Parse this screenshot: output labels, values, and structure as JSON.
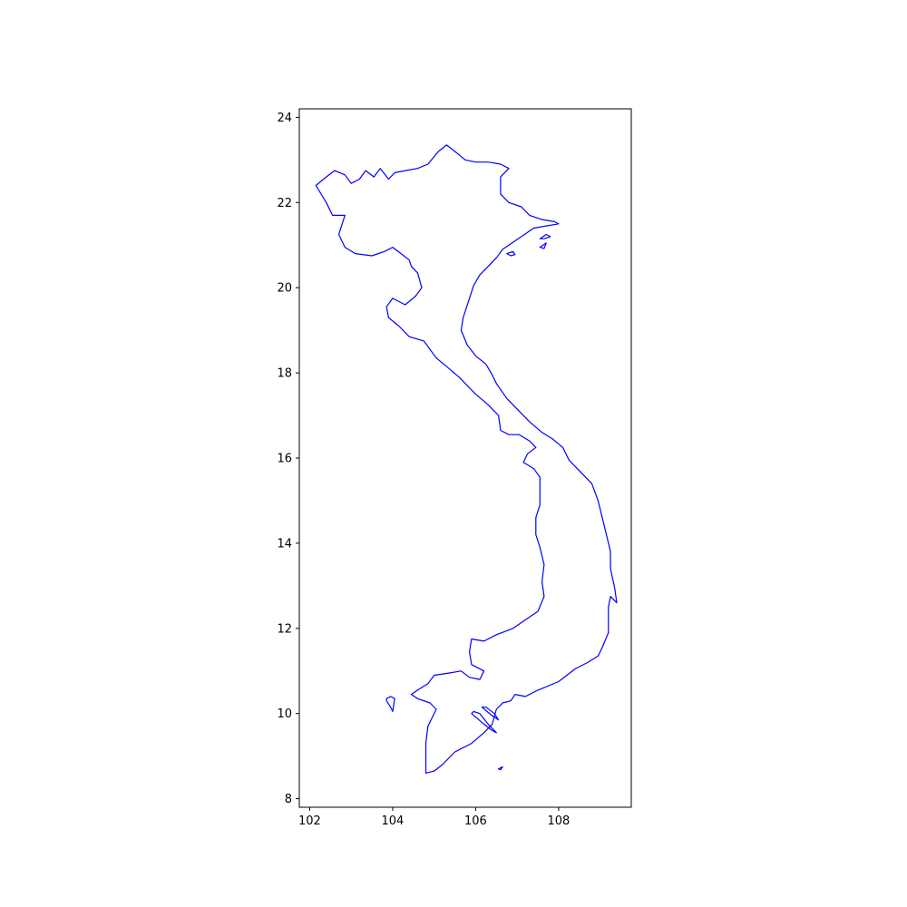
{
  "chart_data": {
    "type": "map",
    "title": "",
    "xlabel": "",
    "ylabel": "",
    "xlim": [
      101.75,
      109.75
    ],
    "ylim": [
      7.8,
      24.2
    ],
    "xticks": [
      102,
      104,
      106,
      108
    ],
    "xtick_labels": [
      "102",
      "104",
      "106",
      "108"
    ],
    "yticks": [
      8,
      10,
      12,
      14,
      16,
      18,
      20,
      22,
      24
    ],
    "ytick_labels": [
      "8",
      "10",
      "12",
      "14",
      "16",
      "18",
      "20",
      "22",
      "24"
    ],
    "grid": false,
    "line_color": "#0000ff",
    "frame_color": "#000000",
    "shapes": [
      {
        "name": "mainland",
        "points": [
          [
            102.15,
            22.4
          ],
          [
            102.4,
            22.6
          ],
          [
            102.6,
            22.75
          ],
          [
            102.85,
            22.65
          ],
          [
            103.0,
            22.45
          ],
          [
            103.2,
            22.55
          ],
          [
            103.35,
            22.75
          ],
          [
            103.55,
            22.6
          ],
          [
            103.7,
            22.8
          ],
          [
            103.9,
            22.55
          ],
          [
            104.05,
            22.7
          ],
          [
            104.3,
            22.75
          ],
          [
            104.6,
            22.8
          ],
          [
            104.85,
            22.9
          ],
          [
            105.1,
            23.2
          ],
          [
            105.3,
            23.35
          ],
          [
            105.5,
            23.2
          ],
          [
            105.75,
            23.0
          ],
          [
            106.0,
            22.95
          ],
          [
            106.3,
            22.95
          ],
          [
            106.6,
            22.9
          ],
          [
            106.8,
            22.8
          ],
          [
            106.6,
            22.6
          ],
          [
            106.6,
            22.2
          ],
          [
            106.8,
            22.0
          ],
          [
            107.1,
            21.9
          ],
          [
            107.3,
            21.7
          ],
          [
            107.6,
            21.6
          ],
          [
            107.9,
            21.55
          ],
          [
            108.0,
            21.5
          ],
          [
            107.7,
            21.45
          ],
          [
            107.4,
            21.4
          ],
          [
            107.1,
            21.2
          ],
          [
            106.8,
            21.0
          ],
          [
            106.65,
            20.9
          ],
          [
            106.5,
            20.7
          ],
          [
            106.3,
            20.5
          ],
          [
            106.1,
            20.3
          ],
          [
            105.95,
            20.05
          ],
          [
            105.85,
            19.75
          ],
          [
            105.7,
            19.3
          ],
          [
            105.65,
            19.0
          ],
          [
            105.8,
            18.65
          ],
          [
            106.0,
            18.4
          ],
          [
            106.25,
            18.2
          ],
          [
            106.4,
            17.95
          ],
          [
            106.5,
            17.75
          ],
          [
            106.75,
            17.4
          ],
          [
            107.05,
            17.1
          ],
          [
            107.3,
            16.85
          ],
          [
            107.6,
            16.6
          ],
          [
            107.85,
            16.45
          ],
          [
            108.1,
            16.25
          ],
          [
            108.25,
            15.95
          ],
          [
            108.5,
            15.7
          ],
          [
            108.8,
            15.4
          ],
          [
            108.95,
            15.0
          ],
          [
            109.05,
            14.6
          ],
          [
            109.15,
            14.2
          ],
          [
            109.25,
            13.8
          ],
          [
            109.25,
            13.4
          ],
          [
            109.35,
            12.95
          ],
          [
            109.4,
            12.6
          ],
          [
            109.25,
            12.75
          ],
          [
            109.2,
            12.5
          ],
          [
            109.2,
            12.2
          ],
          [
            109.2,
            11.9
          ],
          [
            109.05,
            11.55
          ],
          [
            108.95,
            11.35
          ],
          [
            108.7,
            11.2
          ],
          [
            108.4,
            11.05
          ],
          [
            108.0,
            10.75
          ],
          [
            107.5,
            10.55
          ],
          [
            107.2,
            10.4
          ],
          [
            106.95,
            10.45
          ],
          [
            106.85,
            10.3
          ],
          [
            106.65,
            10.25
          ],
          [
            106.5,
            10.1
          ],
          [
            106.4,
            9.75
          ],
          [
            106.2,
            9.55
          ],
          [
            105.9,
            9.3
          ],
          [
            105.5,
            9.1
          ],
          [
            105.2,
            8.8
          ],
          [
            105.0,
            8.65
          ],
          [
            104.8,
            8.6
          ],
          [
            104.8,
            8.9
          ],
          [
            104.8,
            9.3
          ],
          [
            104.85,
            9.7
          ],
          [
            104.95,
            9.9
          ],
          [
            105.05,
            10.1
          ],
          [
            104.9,
            10.25
          ],
          [
            104.6,
            10.35
          ],
          [
            104.45,
            10.45
          ],
          [
            104.6,
            10.55
          ],
          [
            104.85,
            10.7
          ],
          [
            105.0,
            10.9
          ],
          [
            105.35,
            10.95
          ],
          [
            105.65,
            11.0
          ],
          [
            105.85,
            10.85
          ],
          [
            106.1,
            10.8
          ],
          [
            106.2,
            11.0
          ],
          [
            105.9,
            11.15
          ],
          [
            105.85,
            11.45
          ],
          [
            105.9,
            11.75
          ],
          [
            106.2,
            11.7
          ],
          [
            106.5,
            11.85
          ],
          [
            106.9,
            12.0
          ],
          [
            107.2,
            12.2
          ],
          [
            107.5,
            12.4
          ],
          [
            107.65,
            12.75
          ],
          [
            107.6,
            13.1
          ],
          [
            107.65,
            13.5
          ],
          [
            107.55,
            13.9
          ],
          [
            107.45,
            14.2
          ],
          [
            107.45,
            14.6
          ],
          [
            107.55,
            14.9
          ],
          [
            107.55,
            15.3
          ],
          [
            107.55,
            15.55
          ],
          [
            107.4,
            15.75
          ],
          [
            107.15,
            15.9
          ],
          [
            107.25,
            16.1
          ],
          [
            107.45,
            16.25
          ],
          [
            107.3,
            16.4
          ],
          [
            107.05,
            16.55
          ],
          [
            106.8,
            16.55
          ],
          [
            106.6,
            16.65
          ],
          [
            106.55,
            17.0
          ],
          [
            106.3,
            17.25
          ],
          [
            106.0,
            17.5
          ],
          [
            105.6,
            17.9
          ],
          [
            105.3,
            18.15
          ],
          [
            105.05,
            18.35
          ],
          [
            104.75,
            18.75
          ],
          [
            104.4,
            18.85
          ],
          [
            104.15,
            19.1
          ],
          [
            103.9,
            19.3
          ],
          [
            103.85,
            19.55
          ],
          [
            104.0,
            19.75
          ],
          [
            104.3,
            19.6
          ],
          [
            104.55,
            19.8
          ],
          [
            104.7,
            20.0
          ],
          [
            104.6,
            20.35
          ],
          [
            104.45,
            20.5
          ],
          [
            104.4,
            20.65
          ],
          [
            104.2,
            20.8
          ],
          [
            104.0,
            20.95
          ],
          [
            103.8,
            20.85
          ],
          [
            103.5,
            20.75
          ],
          [
            103.1,
            20.8
          ],
          [
            102.85,
            20.95
          ],
          [
            102.7,
            21.25
          ],
          [
            102.85,
            21.7
          ],
          [
            102.55,
            21.7
          ],
          [
            102.4,
            22.0
          ]
        ]
      },
      {
        "name": "phu-quoc-island",
        "points": [
          [
            103.85,
            10.35
          ],
          [
            103.95,
            10.4
          ],
          [
            104.05,
            10.35
          ],
          [
            104.0,
            10.05
          ],
          [
            103.95,
            10.15
          ],
          [
            103.85,
            10.3
          ]
        ]
      },
      {
        "name": "con-dao-island",
        "points": [
          [
            106.55,
            8.7
          ],
          [
            106.65,
            8.75
          ],
          [
            106.6,
            8.68
          ]
        ]
      },
      {
        "name": "cat-ba-island-1",
        "points": [
          [
            107.55,
            21.15
          ],
          [
            107.7,
            21.25
          ],
          [
            107.8,
            21.2
          ],
          [
            107.65,
            21.15
          ]
        ]
      },
      {
        "name": "cat-ba-island-2",
        "points": [
          [
            107.55,
            20.95
          ],
          [
            107.7,
            21.05
          ],
          [
            107.65,
            20.92
          ]
        ]
      },
      {
        "name": "cat-ba-island-3",
        "points": [
          [
            106.75,
            20.8
          ],
          [
            106.9,
            20.85
          ],
          [
            106.95,
            20.78
          ],
          [
            106.85,
            20.75
          ]
        ]
      },
      {
        "name": "mekong-delta-island-1",
        "points": [
          [
            105.9,
            10.0
          ],
          [
            106.2,
            9.75
          ],
          [
            106.4,
            9.6
          ],
          [
            106.5,
            9.55
          ],
          [
            106.3,
            9.75
          ],
          [
            106.1,
            10.0
          ],
          [
            105.95,
            10.05
          ]
        ]
      },
      {
        "name": "mekong-delta-island-2",
        "points": [
          [
            106.15,
            10.15
          ],
          [
            106.4,
            9.95
          ],
          [
            106.55,
            9.85
          ],
          [
            106.45,
            10.0
          ],
          [
            106.25,
            10.15
          ]
        ]
      }
    ]
  }
}
